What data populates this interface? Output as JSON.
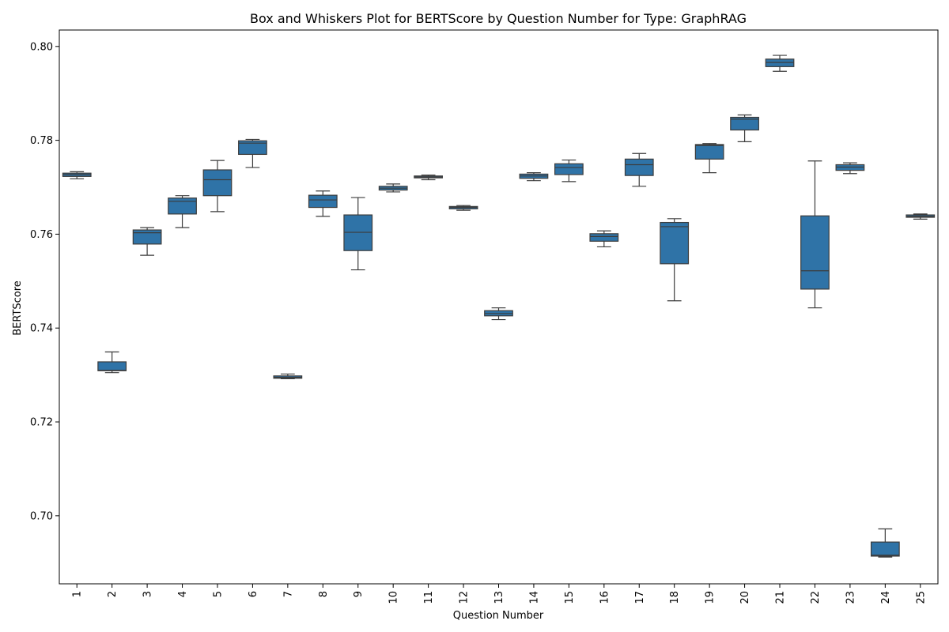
{
  "chart_data": {
    "type": "box",
    "title": "Box and Whiskers Plot for BERTScore by Question Number for Type: GraphRAG",
    "xlabel": "Question Number",
    "ylabel": "BERTScore",
    "ylim": [
      0.6855,
      0.8035
    ],
    "yticks": [
      0.7,
      0.72,
      0.74,
      0.76,
      0.78,
      0.8
    ],
    "yticklabels": [
      "0.70",
      "0.72",
      "0.74",
      "0.76",
      "0.78",
      "0.80"
    ],
    "categories": [
      "1",
      "2",
      "3",
      "4",
      "5",
      "6",
      "7",
      "8",
      "9",
      "10",
      "11",
      "12",
      "13",
      "14",
      "15",
      "16",
      "17",
      "18",
      "19",
      "20",
      "21",
      "22",
      "23",
      "24",
      "25"
    ],
    "grid": false,
    "box_color": "#2f73a7",
    "line_color": "#3c3c3c",
    "boxes": [
      {
        "q": "1",
        "whislo": 0.7718,
        "q1": 0.7723,
        "med": 0.7727,
        "q3": 0.773,
        "whishi": 0.7733
      },
      {
        "q": "2",
        "whislo": 0.7305,
        "q1": 0.7309,
        "med": 0.731,
        "q3": 0.7328,
        "whishi": 0.7349
      },
      {
        "q": "3",
        "whislo": 0.7555,
        "q1": 0.7579,
        "med": 0.7603,
        "q3": 0.7609,
        "whishi": 0.7614
      },
      {
        "q": "4",
        "whislo": 0.7614,
        "q1": 0.7643,
        "med": 0.767,
        "q3": 0.7677,
        "whishi": 0.7682
      },
      {
        "q": "5",
        "whislo": 0.7648,
        "q1": 0.7682,
        "med": 0.7716,
        "q3": 0.7737,
        "whishi": 0.7757
      },
      {
        "q": "6",
        "whislo": 0.7742,
        "q1": 0.777,
        "med": 0.7794,
        "q3": 0.7799,
        "whishi": 0.7802
      },
      {
        "q": "7",
        "whislo": 0.7292,
        "q1": 0.7293,
        "med": 0.7295,
        "q3": 0.7298,
        "whishi": 0.7302
      },
      {
        "q": "8",
        "whislo": 0.7638,
        "q1": 0.7657,
        "med": 0.7673,
        "q3": 0.7683,
        "whishi": 0.7692
      },
      {
        "q": "9",
        "whislo": 0.7524,
        "q1": 0.7565,
        "med": 0.7604,
        "q3": 0.7641,
        "whishi": 0.7678
      },
      {
        "q": "10",
        "whislo": 0.769,
        "q1": 0.7694,
        "med": 0.7698,
        "q3": 0.7702,
        "whishi": 0.7707
      },
      {
        "q": "11",
        "whislo": 0.7716,
        "q1": 0.772,
        "med": 0.7722,
        "q3": 0.7724,
        "whishi": 0.7726
      },
      {
        "q": "12",
        "whislo": 0.7651,
        "q1": 0.7654,
        "med": 0.7657,
        "q3": 0.7659,
        "whishi": 0.7661
      },
      {
        "q": "13",
        "whislo": 0.7418,
        "q1": 0.7426,
        "med": 0.7431,
        "q3": 0.7437,
        "whishi": 0.7443
      },
      {
        "q": "14",
        "whislo": 0.7714,
        "q1": 0.7719,
        "med": 0.7724,
        "q3": 0.7728,
        "whishi": 0.7731
      },
      {
        "q": "15",
        "whislo": 0.7712,
        "q1": 0.7727,
        "med": 0.7742,
        "q3": 0.775,
        "whishi": 0.7758
      },
      {
        "q": "16",
        "whislo": 0.7573,
        "q1": 0.7585,
        "med": 0.7595,
        "q3": 0.7601,
        "whishi": 0.7607
      },
      {
        "q": "17",
        "whislo": 0.7702,
        "q1": 0.7725,
        "med": 0.7748,
        "q3": 0.776,
        "whishi": 0.7772
      },
      {
        "q": "18",
        "whislo": 0.7458,
        "q1": 0.7537,
        "med": 0.7616,
        "q3": 0.7625,
        "whishi": 0.7633
      },
      {
        "q": "19",
        "whislo": 0.7731,
        "q1": 0.776,
        "med": 0.7789,
        "q3": 0.7791,
        "whishi": 0.7793
      },
      {
        "q": "20",
        "whislo": 0.7797,
        "q1": 0.7822,
        "med": 0.7845,
        "q3": 0.7849,
        "whishi": 0.7854
      },
      {
        "q": "21",
        "whislo": 0.7947,
        "q1": 0.7957,
        "med": 0.7966,
        "q3": 0.7973,
        "whishi": 0.7981
      },
      {
        "q": "22",
        "whislo": 0.7443,
        "q1": 0.7483,
        "med": 0.7522,
        "q3": 0.7639,
        "whishi": 0.7756
      },
      {
        "q": "23",
        "whislo": 0.7729,
        "q1": 0.7736,
        "med": 0.7743,
        "q3": 0.7748,
        "whishi": 0.7752
      },
      {
        "q": "24",
        "whislo": 0.6912,
        "q1": 0.6914,
        "med": 0.6916,
        "q3": 0.6944,
        "whishi": 0.6972
      },
      {
        "q": "25",
        "whislo": 0.7632,
        "q1": 0.7636,
        "med": 0.7638,
        "q3": 0.7641,
        "whishi": 0.7643
      }
    ]
  }
}
